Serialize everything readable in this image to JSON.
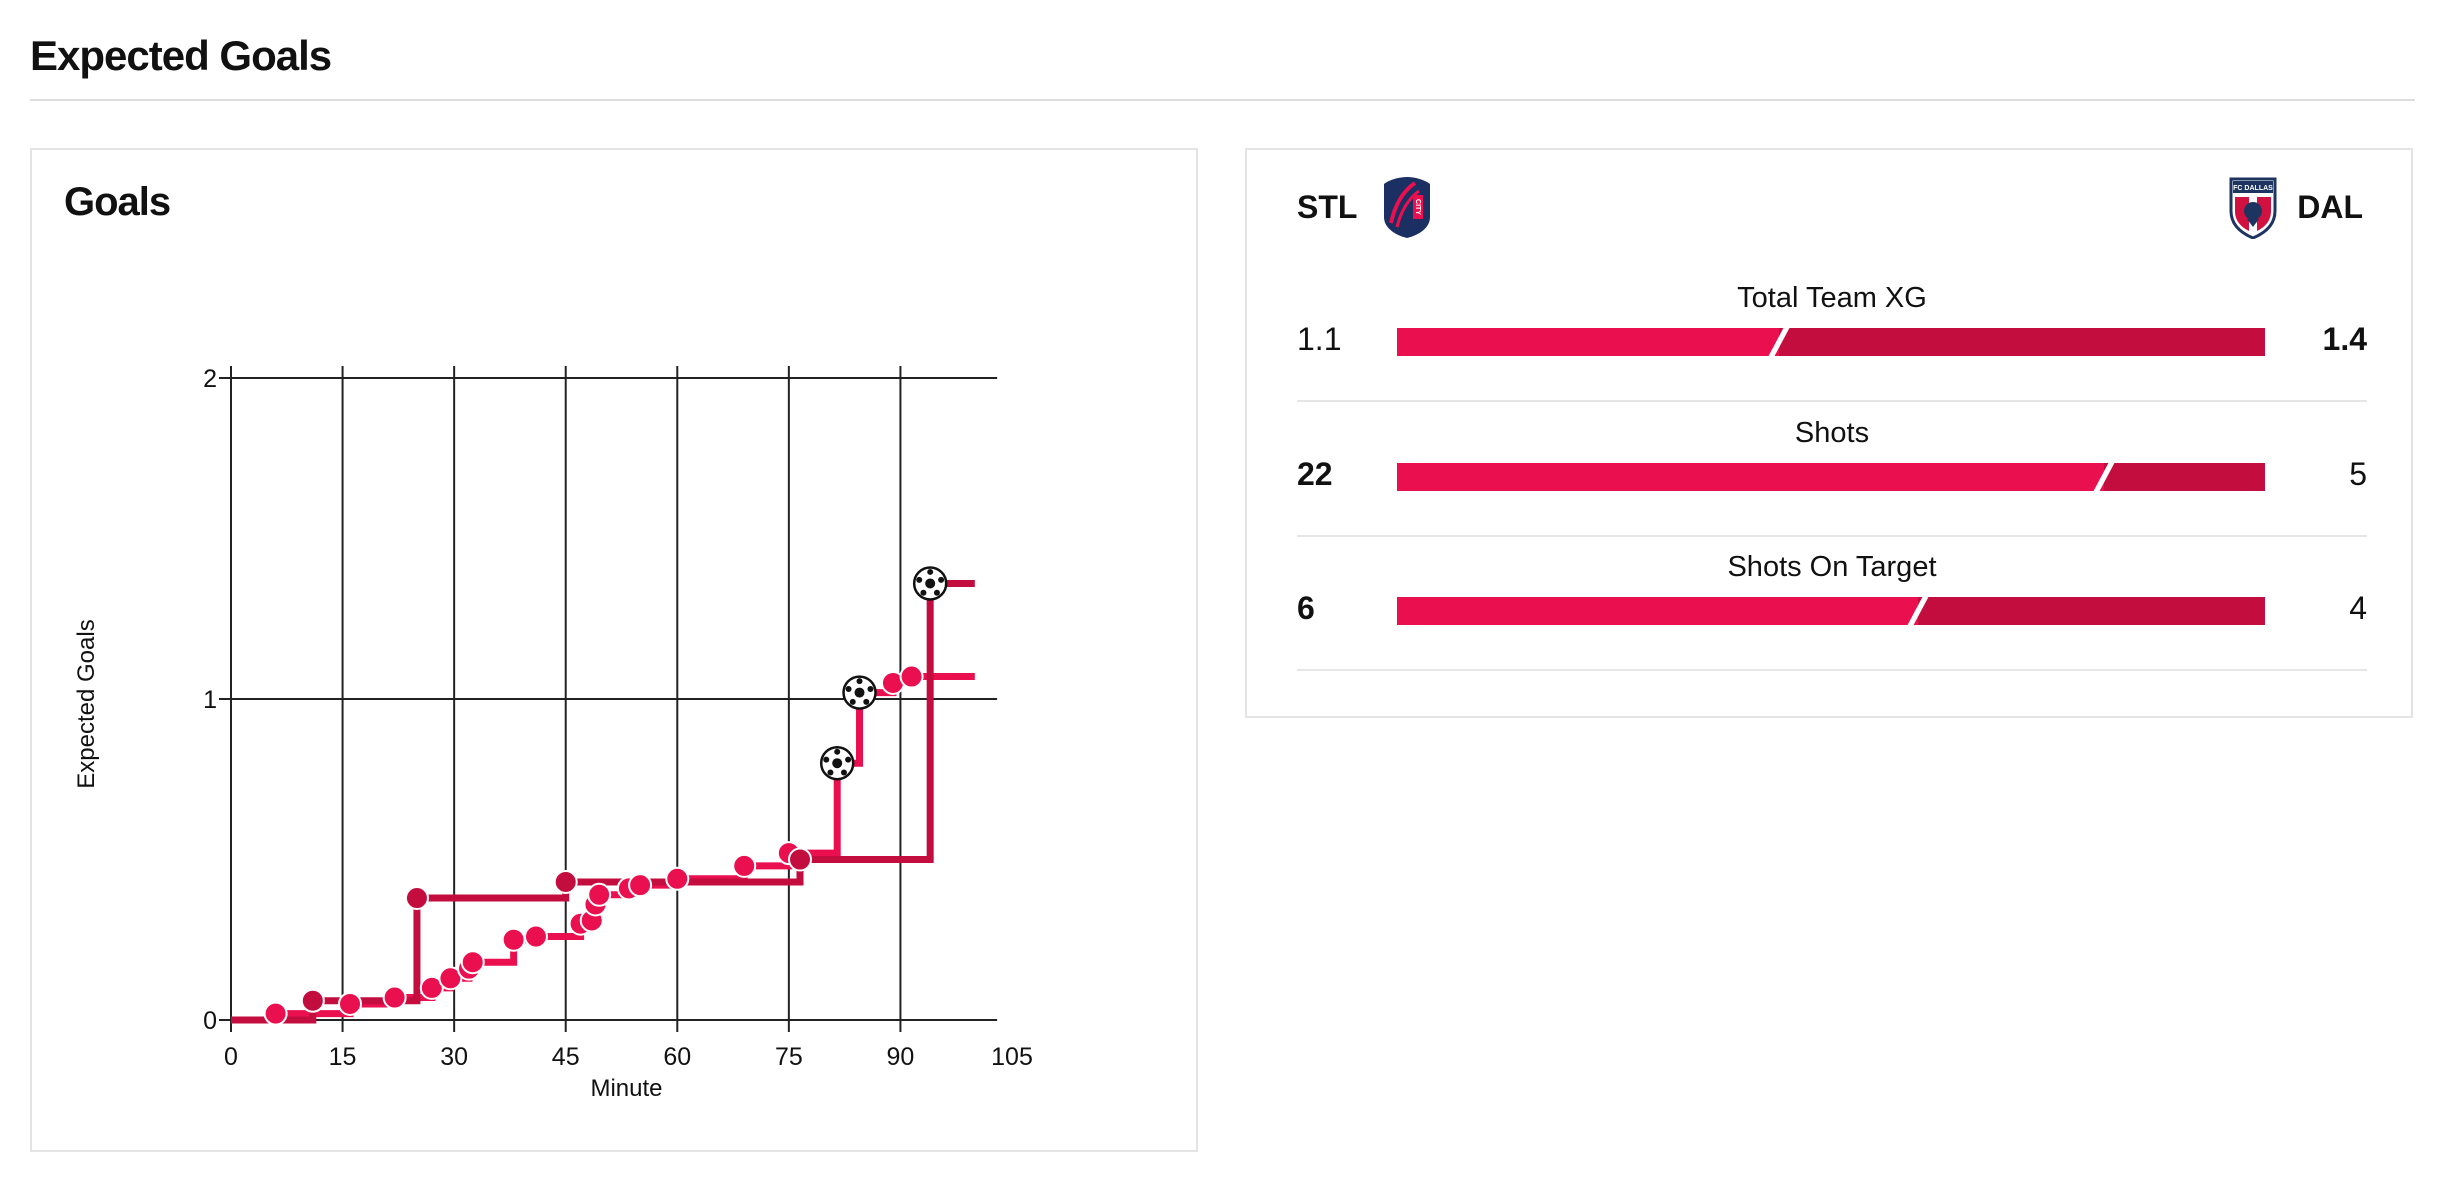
{
  "page": {
    "title": "Expected Goals"
  },
  "goals_card": {
    "title": "Goals"
  },
  "colors": {
    "home": "#ea0f4f",
    "away": "#c40d3f",
    "grid": "#222222",
    "separator": "#dedede"
  },
  "chart_data": {
    "type": "line",
    "subtype": "step",
    "xlabel": "Minute",
    "ylabel": "Expected Goals",
    "xlim": [
      0,
      105
    ],
    "ylim": [
      0,
      2
    ],
    "xticks": [
      0,
      15,
      30,
      45,
      60,
      75,
      90,
      105
    ],
    "yticks": [
      0,
      1,
      2
    ],
    "grid": true,
    "series": [
      {
        "name": "STL",
        "color": "#ea0f4f",
        "final_minute": 100,
        "shots": [
          {
            "minute": 6,
            "xg": 0.02,
            "goal": false
          },
          {
            "minute": 16,
            "xg": 0.05,
            "goal": false
          },
          {
            "minute": 22,
            "xg": 0.07,
            "goal": false
          },
          {
            "minute": 27,
            "xg": 0.1,
            "goal": false
          },
          {
            "minute": 29.5,
            "xg": 0.13,
            "goal": false
          },
          {
            "minute": 32,
            "xg": 0.16,
            "goal": false
          },
          {
            "minute": 32.5,
            "xg": 0.18,
            "goal": false
          },
          {
            "minute": 38,
            "xg": 0.25,
            "goal": false
          },
          {
            "minute": 41,
            "xg": 0.26,
            "goal": false
          },
          {
            "minute": 47,
            "xg": 0.3,
            "goal": false
          },
          {
            "minute": 48.5,
            "xg": 0.31,
            "goal": false
          },
          {
            "minute": 49,
            "xg": 0.36,
            "goal": false
          },
          {
            "minute": 49.5,
            "xg": 0.39,
            "goal": false
          },
          {
            "minute": 53.5,
            "xg": 0.41,
            "goal": false
          },
          {
            "minute": 55,
            "xg": 0.42,
            "goal": false
          },
          {
            "minute": 60,
            "xg": 0.44,
            "goal": false
          },
          {
            "minute": 69,
            "xg": 0.48,
            "goal": false
          },
          {
            "minute": 75,
            "xg": 0.52,
            "goal": false
          },
          {
            "minute": 81.5,
            "xg": 0.8,
            "goal": true
          },
          {
            "minute": 84.5,
            "xg": 1.02,
            "goal": true
          },
          {
            "minute": 89,
            "xg": 1.05,
            "goal": false
          },
          {
            "minute": 91.5,
            "xg": 1.07,
            "goal": false
          }
        ]
      },
      {
        "name": "DAL",
        "color": "#c40d3f",
        "final_minute": 100,
        "shots": [
          {
            "minute": 11,
            "xg": 0.06,
            "goal": false
          },
          {
            "minute": 25,
            "xg": 0.38,
            "goal": false
          },
          {
            "minute": 45,
            "xg": 0.43,
            "goal": false
          },
          {
            "minute": 76.5,
            "xg": 0.5,
            "goal": false
          },
          {
            "minute": 94,
            "xg": 1.36,
            "goal": true
          }
        ]
      }
    ]
  },
  "teams": {
    "home": {
      "code": "STL",
      "crest": "st-louis-city-crest",
      "crest_text": "CITY"
    },
    "away": {
      "code": "DAL",
      "crest": "fc-dallas-crest",
      "crest_text": "FC DALLAS"
    }
  },
  "stats": [
    {
      "label": "Total Team XG",
      "home": "1.1",
      "away": "1.4",
      "home_value": 1.1,
      "away_value": 1.4,
      "leader": "away"
    },
    {
      "label": "Shots",
      "home": "22",
      "away": "5",
      "home_value": 22,
      "away_value": 5,
      "leader": "home"
    },
    {
      "label": "Shots On Target",
      "home": "6",
      "away": "4",
      "home_value": 6,
      "away_value": 4,
      "leader": "home"
    }
  ]
}
